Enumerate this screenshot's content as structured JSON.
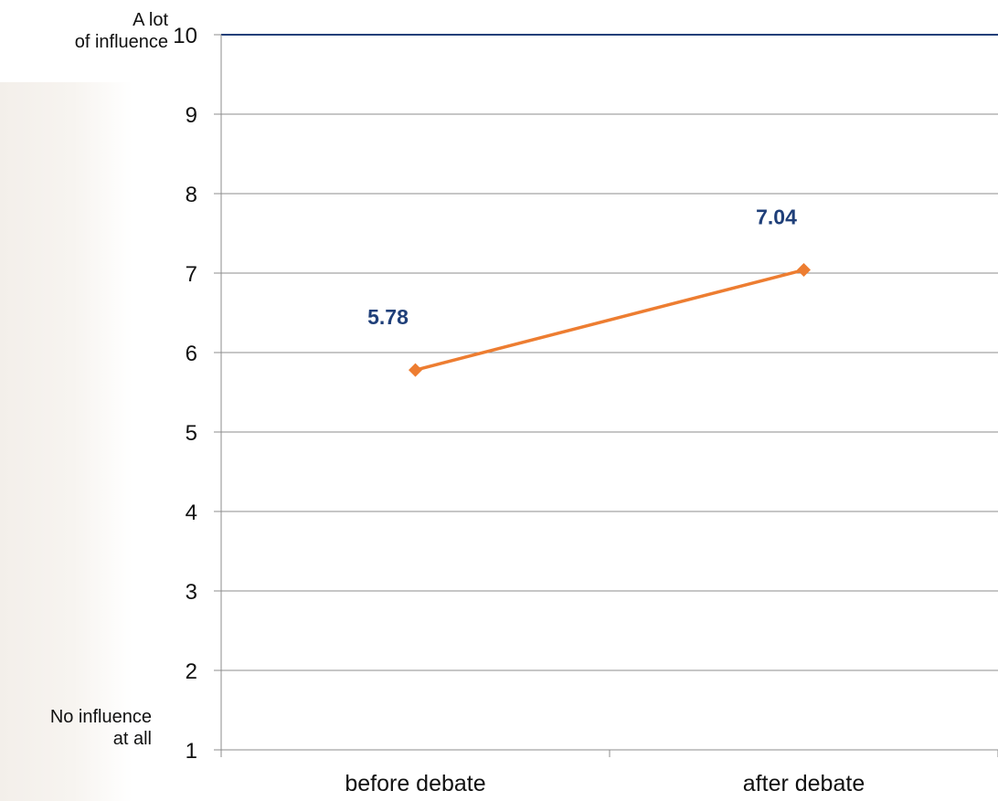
{
  "chart_data": {
    "type": "line",
    "categories": [
      "before debate",
      "after debate"
    ],
    "series": [
      {
        "values": [
          5.78,
          7.04
        ],
        "data_labels": [
          "5.78",
          "7.04"
        ],
        "color": "#ed7d31",
        "marker": "diamond"
      }
    ],
    "ylim": [
      1,
      10
    ],
    "yticks": [
      "1",
      "2",
      "3",
      "4",
      "5",
      "6",
      "7",
      "8",
      "9",
      "10"
    ],
    "annotations": {
      "top": [
        "A lot",
        "of influence"
      ],
      "bottom": [
        "No influence",
        "at all"
      ]
    },
    "grid": true,
    "label_color": "#1f3f79",
    "axis_color": "#1f3f79"
  }
}
